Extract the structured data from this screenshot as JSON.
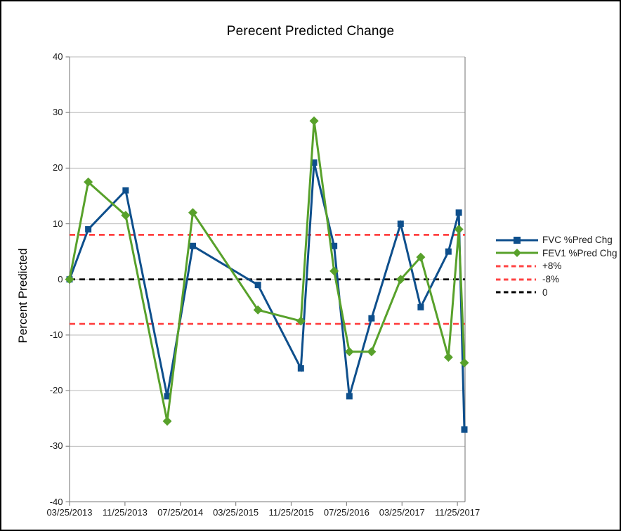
{
  "chart_data": {
    "type": "line",
    "title": "Perecent Predicted Change",
    "y_axis_title": "Percent Predicted",
    "x_axis_note": "date axis; point x values are months after 03/25/2013, estimated from marker positions",
    "ylim": [
      -40,
      40
    ],
    "xlim": [
      0,
      57.1
    ],
    "grid": "horizontal",
    "legend_position": "right",
    "y_ticks": [
      40,
      30,
      20,
      10,
      0,
      -10,
      -20,
      -30,
      -40
    ],
    "x_ticks": [
      {
        "label": "03/25/2013",
        "m": 0
      },
      {
        "label": "11/25/2013",
        "m": 8
      },
      {
        "label": "07/25/2014",
        "m": 16
      },
      {
        "label": "03/25/2015",
        "m": 24
      },
      {
        "label": "11/25/2015",
        "m": 32
      },
      {
        "label": "07/25/2016",
        "m": 40
      },
      {
        "label": "03/25/2017",
        "m": 48
      },
      {
        "label": "11/25/2017",
        "m": 56
      }
    ],
    "x_months": [
      0,
      2.7,
      8.1,
      14.1,
      17.8,
      27.2,
      33.4,
      35.3,
      38.2,
      40.4,
      43.6,
      47.8,
      50.7,
      54.7,
      56.2,
      57.0
    ],
    "series": [
      {
        "name": "FVC %Pred Chg",
        "marker": "square",
        "color": "#0e4f8c",
        "values": [
          0,
          9,
          16,
          -21,
          6,
          -1,
          -16,
          21,
          6,
          -21,
          -7,
          10,
          -5,
          5,
          12,
          -27
        ]
      },
      {
        "name": "FEV1 %Pred Chg",
        "marker": "diamond",
        "color": "#58a12b",
        "values": [
          0,
          17.5,
          11.5,
          -25.5,
          12,
          -5.5,
          -7.5,
          28.5,
          1.5,
          -13,
          -13,
          0,
          4,
          -14,
          9,
          -15
        ]
      }
    ],
    "reference_lines": [
      {
        "label": "+8%",
        "y": 8,
        "color": "#ff4343",
        "style": "dashed"
      },
      {
        "label": "-8%",
        "y": -8,
        "color": "#ff4343",
        "style": "dashed"
      },
      {
        "label": "0",
        "y": 0,
        "color": "#000000",
        "style": "dashed"
      }
    ],
    "legend": {
      "items": [
        {
          "label": "FVC %Pred Chg",
          "color": "#0e4f8c",
          "style": "solid-square"
        },
        {
          "label": "FEV1 %Pred Chg",
          "color": "#58a12b",
          "style": "solid-diamond"
        },
        {
          "label": "+8%",
          "color": "#ff4343",
          "style": "dashed"
        },
        {
          "label": "-8%",
          "color": "#ff4343",
          "style": "dashed"
        },
        {
          "label": "0",
          "color": "#000000",
          "style": "dashed"
        }
      ]
    },
    "colors": {
      "gridline": "#b9b9b9",
      "axis": "#888888",
      "text": "#1a1a1a",
      "background": "#ffffff"
    }
  }
}
